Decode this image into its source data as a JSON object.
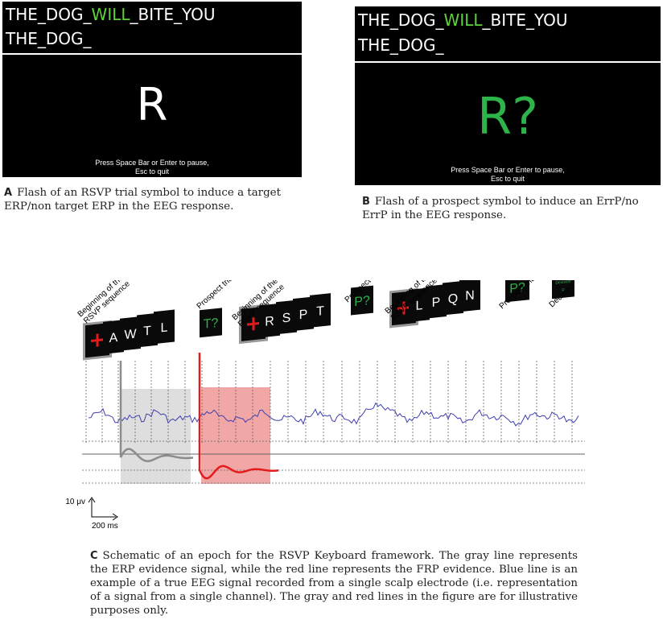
{
  "panel_a": {
    "line1_pre": "THE_DOG_",
    "line1_highlight": "WILL",
    "line1_post": "_BITE_YOU",
    "line2": "THE_DOG_",
    "symbol": "R",
    "hint_line1": "Press Space Bar or Enter to pause,",
    "hint_line2": "Esc to quit",
    "caption_letter": "A",
    "caption_text": "Flash of an RSVP trial symbol to induce a target ERP/non target ERP in the EEG response."
  },
  "panel_b": {
    "line1_pre": "THE_DOG_",
    "line1_highlight": "WILL",
    "line1_post": "_BITE_YOU",
    "line2": "THE_DOG_",
    "symbol": "R?",
    "hint_line1": "Press Space Bar or Enter to pause,",
    "hint_line2": "Esc to quit",
    "caption_letter": "B",
    "caption_text": "Flash of a prospect symbol to induce an ErrP/no ErrP in the EEG response."
  },
  "panel_c": {
    "labels": {
      "beginning": [
        "Beginning of the",
        "RSVP sequence"
      ],
      "prospect": "Prospect trial",
      "decision": "Decision"
    },
    "sequence1_letters": [
      "A",
      "W",
      "T",
      "L"
    ],
    "prospect1": "T?",
    "sequence2_letters": [
      "R",
      "S",
      "P",
      "T"
    ],
    "prospect2": "P?",
    "sequence3_letters": [
      "L",
      "P",
      "Q",
      "N"
    ],
    "prospect3": "P?",
    "decision_card_lines": [
      "Decision",
      "P"
    ],
    "scale_voltage": "10 μv",
    "scale_time": "200 ms",
    "colors": {
      "erp": "#8c8c8c",
      "frp": "#e51b1b",
      "eeg": "#3f3fb0",
      "gray_box": "#dedede",
      "red_box": "#f2a7a7",
      "prospect_text": "#2db34a"
    },
    "caption_letter": "C",
    "caption_text": "Schematic of an epoch for the RSVP Keyboard framework. The gray line represents the ERP evidence signal, while the red line represents the FRP evidence. Blue line is an example of a true EEG signal recorded from a single scalp electrode (i.e. representation of a signal from a single channel). The gray and red lines in the figure are for illustrative purposes only."
  }
}
